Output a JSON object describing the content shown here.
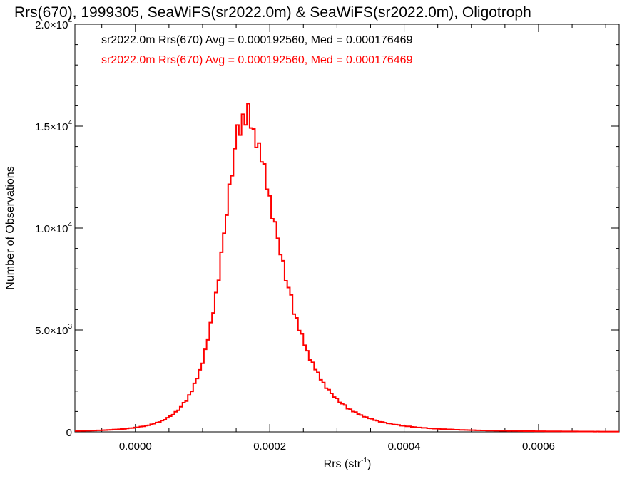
{
  "chart_data": {
    "type": "histogram-step",
    "title": "Rrs(670), 1999305, SeaWiFS(sr2022.0m) & SeaWiFS(sr2022.0m), Oligotroph",
    "xlabel": {
      "base": "Rrs (str",
      "sup": "-1",
      "close": ")"
    },
    "ylabel": "Number of Observations",
    "xlim": [
      -9e-05,
      0.00072
    ],
    "ylim": [
      0,
      20000
    ],
    "x_ticks": [
      {
        "value": 0.0,
        "label": "0.0000"
      },
      {
        "value": 0.0002,
        "label": "0.0002"
      },
      {
        "value": 0.0004,
        "label": "0.0004"
      },
      {
        "value": 0.0006,
        "label": "0.0006"
      }
    ],
    "x_minor_step": 5e-05,
    "y_ticks": [
      {
        "value": 0,
        "mant": "0",
        "exp": ""
      },
      {
        "value": 5000,
        "mant": "5.0×10",
        "exp": "3"
      },
      {
        "value": 10000,
        "mant": "1.0×10",
        "exp": "4"
      },
      {
        "value": 15000,
        "mant": "1.5×10",
        "exp": "4"
      },
      {
        "value": 20000,
        "mant": "2.0×10",
        "exp": "4"
      }
    ],
    "y_minor_step": 1000,
    "legend": [
      {
        "text": "sr2022.0m Rrs(670) Avg = 0.000192560, Med = 0.000176469",
        "color": "#000000"
      },
      {
        "text": "sr2022.0m Rrs(670) Avg = 0.000192560, Med = 0.000176469",
        "color": "#ff0000"
      }
    ],
    "bin_width": 4e-06,
    "series": [
      {
        "color": "#000000",
        "stroke_width": 1.2,
        "values": []
      },
      {
        "color": "#ff0000",
        "stroke_width": 2,
        "values": []
      }
    ]
  }
}
